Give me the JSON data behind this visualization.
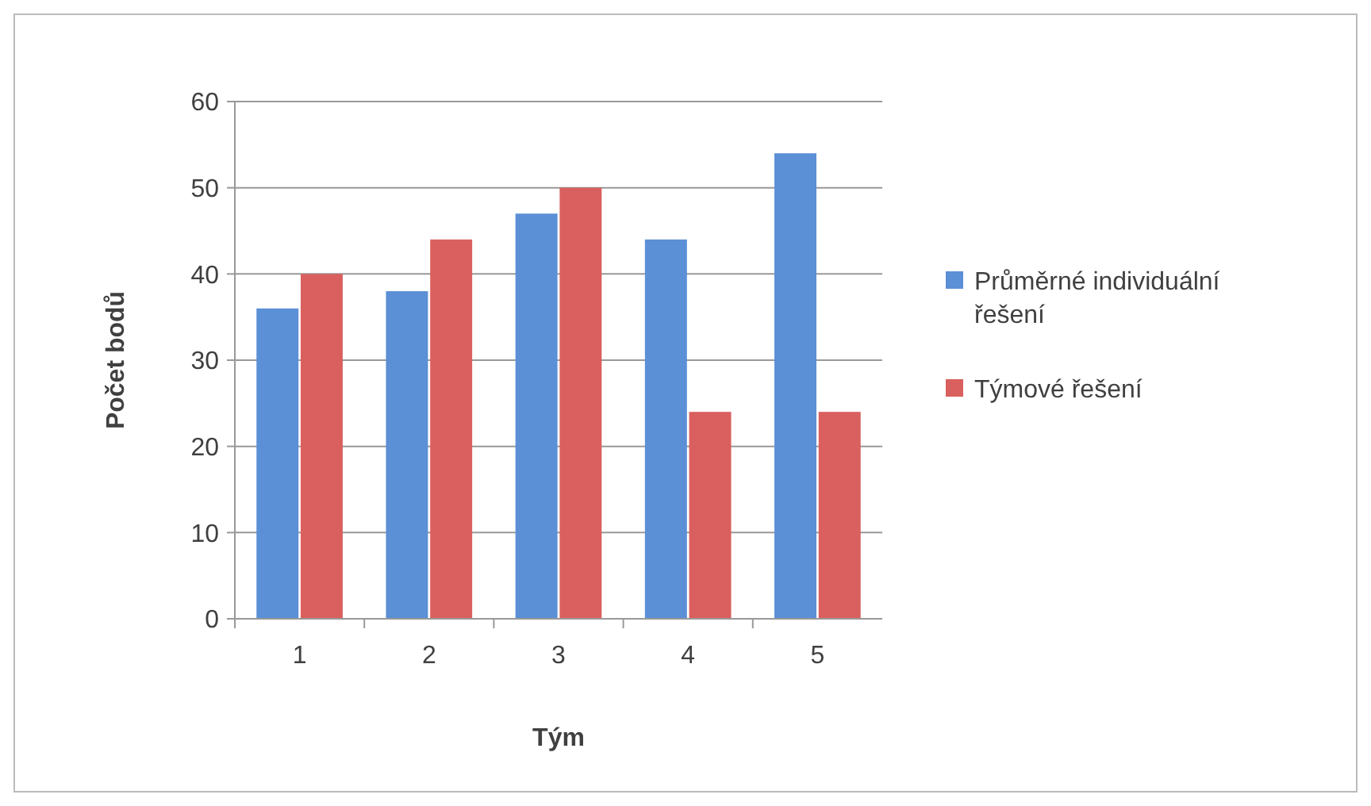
{
  "chart_data": {
    "type": "bar",
    "xlabel": "Tým",
    "ylabel": "Počet bodů",
    "categories": [
      "1",
      "2",
      "3",
      "4",
      "5"
    ],
    "series": [
      {
        "name": "Průměrné individuální řešení",
        "color": "#5b8fd6",
        "values": [
          36,
          38,
          47,
          44,
          54
        ]
      },
      {
        "name": "Týmové řešení",
        "color": "#d9605e",
        "values": [
          40,
          44,
          50,
          24,
          24
        ]
      }
    ],
    "ylim": [
      0,
      60
    ],
    "yticks": [
      0,
      10,
      20,
      30,
      40,
      50,
      60
    ],
    "grid": "y",
    "legend": "right"
  }
}
